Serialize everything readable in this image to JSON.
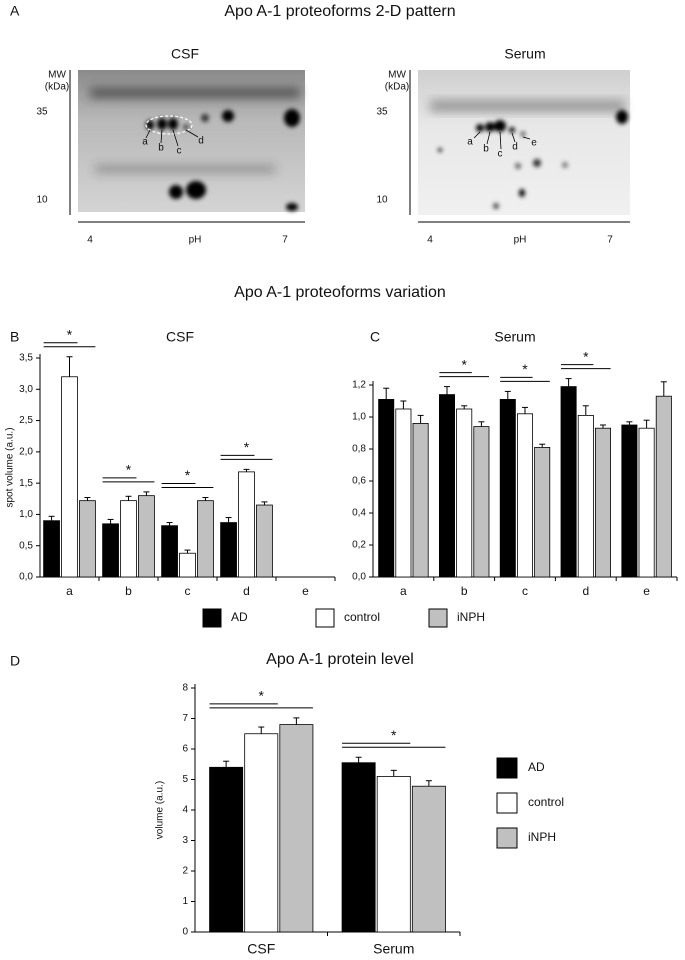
{
  "panel_a": {
    "letter": "A",
    "title": "Apo A-1 proteoforms 2-D pattern",
    "gels": [
      {
        "title": "CSF",
        "mw_label": [
          "MW",
          "(kDa)"
        ],
        "mw_ticks": [
          35,
          10
        ],
        "ph_label": "pH",
        "ph_ticks": [
          4,
          7
        ],
        "spots": [
          "a",
          "b",
          "c",
          "d"
        ]
      },
      {
        "title": "Serum",
        "mw_label": [
          "MW",
          "(kDa)"
        ],
        "mw_ticks": [
          35,
          10
        ],
        "ph_label": "pH",
        "ph_ticks": [
          4,
          7
        ],
        "spots": [
          "a",
          "b",
          "c",
          "d",
          "e"
        ]
      }
    ]
  },
  "section_title": "Apo A-1 proteoforms variation",
  "chart_data": [
    {
      "type": "bar",
      "panel": "B",
      "title": "CSF",
      "y_label": "spot volume (a.u.)",
      "categories": [
        "a",
        "b",
        "c",
        "d",
        "e"
      ],
      "series": [
        {
          "name": "AD",
          "color": "#000000",
          "values": [
            0.9,
            0.85,
            0.82,
            0.87,
            null
          ],
          "errors": [
            0.07,
            0.07,
            0.05,
            0.08,
            null
          ]
        },
        {
          "name": "control",
          "color": "#ffffff",
          "values": [
            3.2,
            1.22,
            0.38,
            1.68,
            null
          ],
          "errors": [
            0.32,
            0.07,
            0.05,
            0.04,
            null
          ]
        },
        {
          "name": "iNPH",
          "color": "#c0c0c0",
          "values": [
            1.22,
            1.3,
            1.22,
            1.15,
            null
          ],
          "errors": [
            0.05,
            0.06,
            0.05,
            0.05,
            null
          ]
        }
      ],
      "annotations": [
        "*",
        "*",
        "*",
        "*",
        null
      ],
      "ylim": [
        0,
        3.5
      ],
      "yticks": [
        {
          "value": 0,
          "label": "0,0"
        },
        {
          "value": 0.5,
          "label": "0,5"
        },
        {
          "value": 1,
          "label": "1,0"
        },
        {
          "value": 1.5,
          "label": "1,5"
        },
        {
          "value": 2,
          "label": "2,0"
        },
        {
          "value": 2.5,
          "label": "2,5"
        },
        {
          "value": 3,
          "label": "3,0"
        },
        {
          "value": 3.5,
          "label": "3,5"
        }
      ]
    },
    {
      "type": "bar",
      "panel": "C",
      "title": "Serum",
      "categories": [
        "a",
        "b",
        "c",
        "d",
        "e"
      ],
      "series": [
        {
          "color": "#000000",
          "values": [
            1.11,
            1.14,
            1.11,
            1.19,
            0.95
          ],
          "errors": [
            0.07,
            0.05,
            0.05,
            0.05,
            0.02
          ]
        },
        {
          "color": "#ffffff",
          "values": [
            1.05,
            1.05,
            1.02,
            1.01,
            0.93
          ],
          "errors": [
            0.05,
            0.02,
            0.04,
            0.06,
            0.05
          ]
        },
        {
          "color": "#c0c0c0",
          "values": [
            0.96,
            0.94,
            0.81,
            0.93,
            1.13
          ],
          "errors": [
            0.05,
            0.03,
            0.02,
            0.02,
            0.09
          ]
        }
      ],
      "annotations": [
        null,
        "*",
        "*",
        "*",
        null
      ],
      "ylim": [
        0,
        1.2
      ],
      "yticks": [
        {
          "value": 0,
          "label": "0,0"
        },
        {
          "value": 0.2,
          "label": "0,2"
        },
        {
          "value": 0.4,
          "label": "0,4"
        },
        {
          "value": 0.6,
          "label": "0,6"
        },
        {
          "value": 0.8,
          "label": "0,8"
        },
        {
          "value": 1,
          "label": "1,0"
        },
        {
          "value": 1.2,
          "label": "1,2"
        }
      ]
    },
    {
      "type": "bar",
      "panel": "D",
      "title": "Apo A-1 protein level",
      "y_label": "volume (a.u.)",
      "categories": [
        "CSF",
        "Serum"
      ],
      "series": [
        {
          "name": "AD",
          "color": "#000000",
          "values": [
            5.4,
            5.55
          ],
          "errors": [
            0.2,
            0.18
          ]
        },
        {
          "name": "control",
          "color": "#ffffff",
          "values": [
            6.5,
            5.1
          ],
          "errors": [
            0.22,
            0.2
          ]
        },
        {
          "name": "iNPH",
          "color": "#c0c0c0",
          "values": [
            6.8,
            4.78
          ],
          "errors": [
            0.22,
            0.18
          ]
        }
      ],
      "annotations": [
        "*",
        "*"
      ],
      "ylim": [
        0,
        8
      ],
      "yticks": [
        0,
        1,
        2,
        3,
        4,
        5,
        6,
        7,
        8
      ]
    }
  ]
}
